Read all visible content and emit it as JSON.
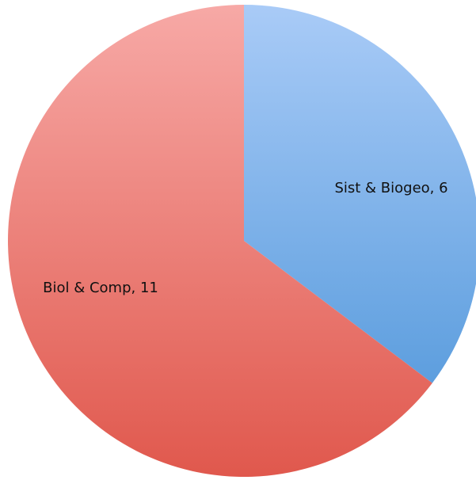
{
  "chart_data": {
    "type": "pie",
    "title": "",
    "slices": [
      {
        "label": "Sist & Biogeo",
        "value": 6,
        "display": "Sist & Biogeo, 6",
        "color_light": "#a9cbf7",
        "color_dark": "#4a93d8"
      },
      {
        "label": "Biol & Comp",
        "value": 11,
        "display": "Biol & Comp, 11",
        "color_light": "#f7a9a6",
        "color_dark": "#e0584d"
      }
    ],
    "start_angle": "12 o'clock",
    "direction": "clockwise",
    "legend": "none",
    "label_position": "inside"
  }
}
